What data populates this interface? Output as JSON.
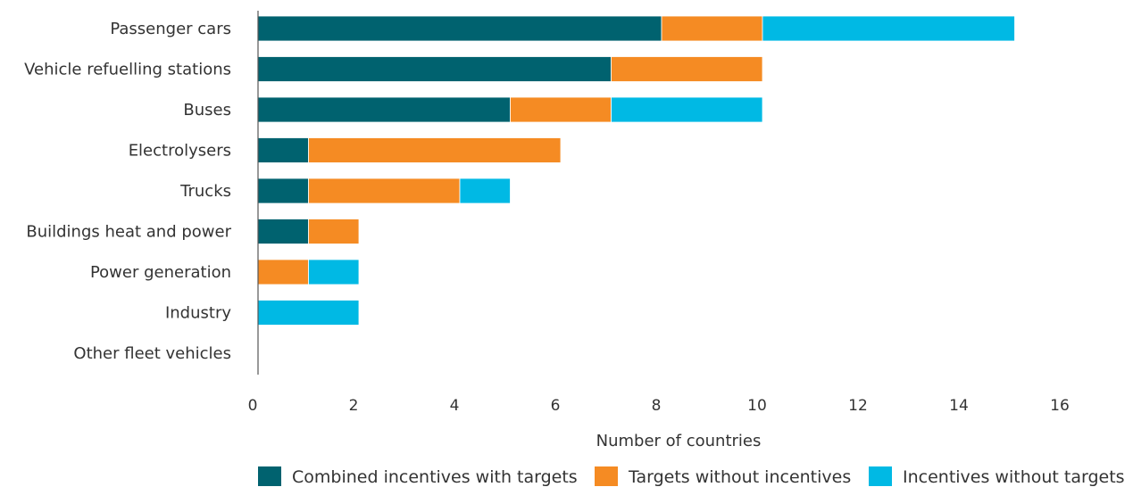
{
  "chart_data": {
    "type": "bar",
    "orientation": "horizontal",
    "stacked": true,
    "categories": [
      "Passenger cars",
      "Vehicle refuelling stations",
      "Buses",
      "Electrolysers",
      "Trucks",
      "Buildings heat and power",
      "Power generation",
      "Industry",
      "Other fleet vehicles"
    ],
    "series": [
      {
        "name": "Combined incentives with targets",
        "color": "#00626f",
        "values": [
          8,
          7,
          5,
          1,
          1,
          1,
          0,
          0,
          0
        ]
      },
      {
        "name": "Targets without incentives",
        "color": "#f58b23",
        "values": [
          2,
          3,
          2,
          5,
          3,
          1,
          1,
          0,
          0
        ]
      },
      {
        "name": "Incentives without targets",
        "color": "#00b9e4",
        "values": [
          5,
          0,
          3,
          0,
          1,
          0,
          1,
          2,
          0
        ]
      }
    ],
    "xlabel": "Number of countries",
    "ylabel": "",
    "xlim": [
      0,
      16
    ],
    "xticks": [
      "0",
      "2",
      "4",
      "6",
      "8",
      "10",
      "12",
      "14",
      "16"
    ],
    "grid": false,
    "legend_position": "bottom"
  }
}
